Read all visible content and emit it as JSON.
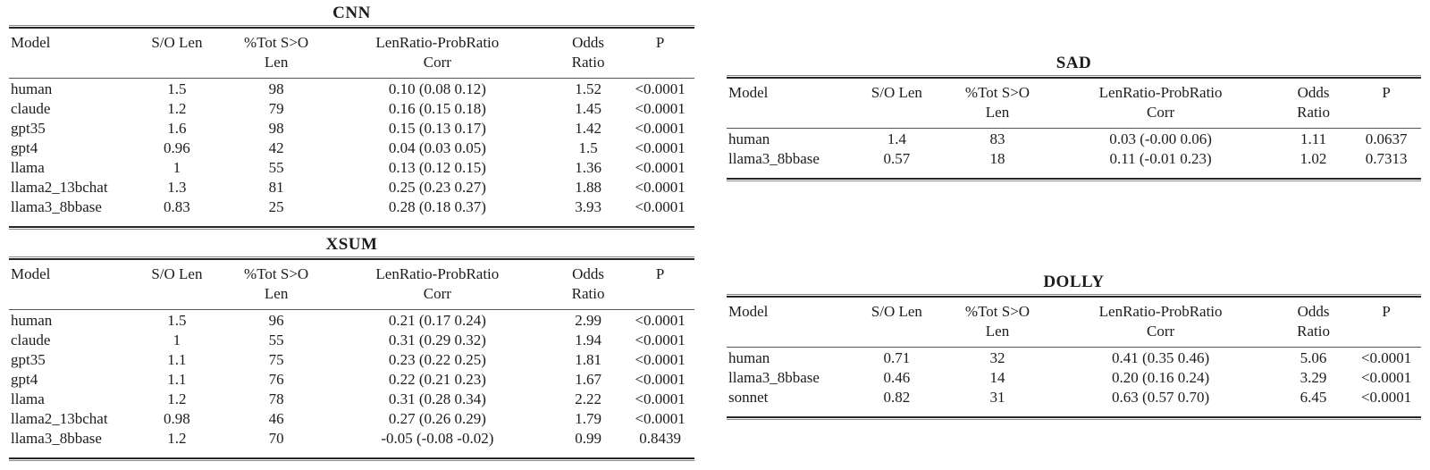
{
  "page": {
    "background": "#ffffff",
    "text_color": "#1c1c1c",
    "rule_color": "#262626"
  },
  "columns": [
    {
      "line1": "Model",
      "line2": ""
    },
    {
      "line1": "S/O Len",
      "line2": ""
    },
    {
      "line1": "%Tot S>O",
      "line2": "Len"
    },
    {
      "line1": "LenRatio-ProbRatio",
      "line2": "Corr"
    },
    {
      "line1": "Odds",
      "line2": "Ratio"
    },
    {
      "line1": "P",
      "line2": ""
    }
  ],
  "tables": [
    {
      "title": "CNN",
      "rows": [
        [
          "human",
          "1.5",
          "98",
          "0.10 (0.08 0.12)",
          "1.52",
          "<0.0001"
        ],
        [
          "claude",
          "1.2",
          "79",
          "0.16 (0.15 0.18)",
          "1.45",
          "<0.0001"
        ],
        [
          "gpt35",
          "1.6",
          "98",
          "0.15 (0.13 0.17)",
          "1.42",
          "<0.0001"
        ],
        [
          "gpt4",
          "0.96",
          "42",
          "0.04 (0.03 0.05)",
          "1.5",
          "<0.0001"
        ],
        [
          "llama",
          "1",
          "55",
          "0.13 (0.12 0.15)",
          "1.36",
          "<0.0001"
        ],
        [
          "llama2_13bchat",
          "1.3",
          "81",
          "0.25 (0.23 0.27)",
          "1.88",
          "<0.0001"
        ],
        [
          "llama3_8bbase",
          "0.83",
          "25",
          "0.28 (0.18 0.37)",
          "3.93",
          "<0.0001"
        ]
      ]
    },
    {
      "title": "SAD",
      "rows": [
        [
          "human",
          "1.4",
          "83",
          "0.03 (-0.00 0.06)",
          "1.11",
          "0.0637"
        ],
        [
          "llama3_8bbase",
          "0.57",
          "18",
          "0.11 (-0.01 0.23)",
          "1.02",
          "0.7313"
        ]
      ]
    },
    {
      "title": "XSUM",
      "rows": [
        [
          "human",
          "1.5",
          "96",
          "0.21 (0.17 0.24)",
          "2.99",
          "<0.0001"
        ],
        [
          "claude",
          "1",
          "55",
          "0.31 (0.29 0.32)",
          "1.94",
          "<0.0001"
        ],
        [
          "gpt35",
          "1.1",
          "75",
          "0.23 (0.22 0.25)",
          "1.81",
          "<0.0001"
        ],
        [
          "gpt4",
          "1.1",
          "76",
          "0.22 (0.21 0.23)",
          "1.67",
          "<0.0001"
        ],
        [
          "llama",
          "1.2",
          "78",
          "0.31 (0.28 0.34)",
          "2.22",
          "<0.0001"
        ],
        [
          "llama2_13bchat",
          "0.98",
          "46",
          "0.27 (0.26 0.29)",
          "1.79",
          "<0.0001"
        ],
        [
          "llama3_8bbase",
          "1.2",
          "70",
          "-0.05 (-0.08 -0.02)",
          "0.99",
          "0.8439"
        ]
      ]
    },
    {
      "title": "DOLLY",
      "rows": [
        [
          "human",
          "0.71",
          "32",
          "0.41 (0.35 0.46)",
          "5.06",
          "<0.0001"
        ],
        [
          "llama3_8bbase",
          "0.46",
          "14",
          "0.20 (0.16 0.24)",
          "3.29",
          "<0.0001"
        ],
        [
          "sonnet",
          "0.82",
          "31",
          "0.63 (0.57 0.70)",
          "6.45",
          "<0.0001"
        ]
      ]
    }
  ]
}
